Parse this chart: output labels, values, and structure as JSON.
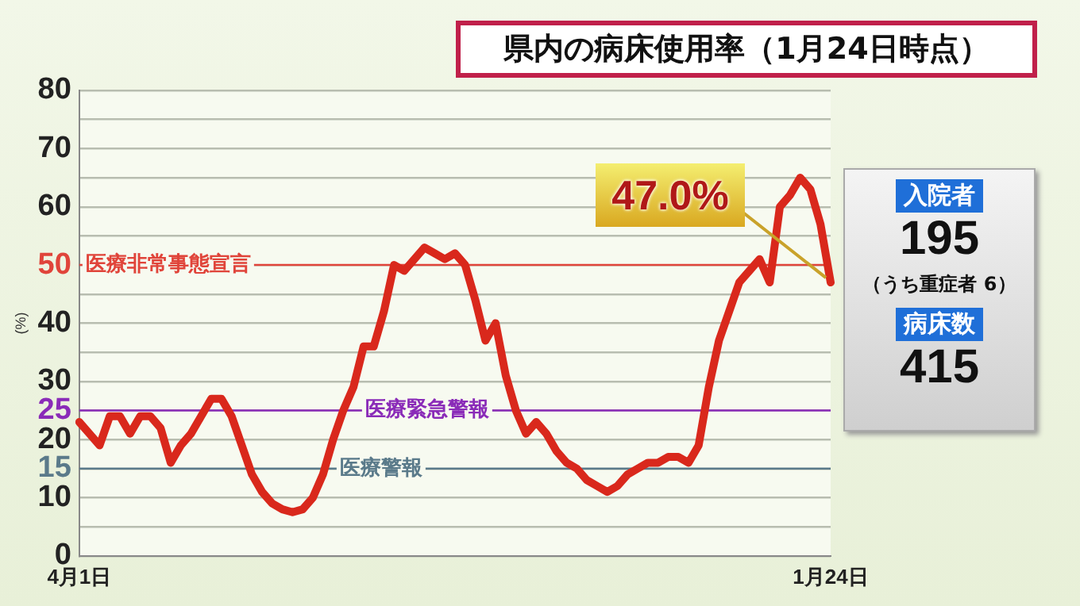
{
  "chart_data": {
    "type": "line",
    "title": "県内の病床使用率（1月24日時点）",
    "ylabel": "(%)",
    "categories": [
      "4月1日",
      null,
      null,
      null,
      null,
      null,
      null,
      null,
      null,
      null,
      null,
      null,
      null,
      null,
      null,
      null,
      null,
      null,
      null,
      null,
      null,
      null,
      null,
      null,
      null,
      null,
      null,
      null,
      null,
      null,
      null,
      null,
      null,
      null,
      null,
      null,
      null,
      null,
      null,
      null,
      null,
      null,
      null,
      null,
      null,
      null,
      null,
      null,
      null,
      null,
      null,
      null,
      null,
      null,
      null,
      null,
      null,
      null,
      null,
      null,
      null,
      null,
      null,
      null,
      null,
      null,
      null,
      null,
      null,
      null,
      null,
      null,
      null,
      null,
      "1月24日"
    ],
    "series": [
      {
        "color": "#d9281c",
        "values": [
          23,
          21,
          19,
          24,
          24,
          21,
          24,
          24,
          22,
          16,
          19,
          21,
          24,
          27,
          27,
          24,
          19,
          14,
          11,
          9,
          8,
          7.5,
          8,
          10,
          14,
          20,
          25,
          29,
          36,
          36,
          42,
          50,
          49,
          51,
          53,
          52,
          51,
          52,
          50,
          44,
          37,
          40,
          31,
          25,
          21,
          23,
          21,
          18,
          16,
          15,
          13,
          12,
          11,
          12,
          14,
          15,
          16,
          16,
          17,
          17,
          16,
          19,
          29,
          37,
          42,
          47,
          49,
          51,
          47,
          60,
          62,
          65,
          63,
          57,
          47
        ]
      }
    ],
    "ylim": [
      0,
      80
    ],
    "yticks": [
      0,
      {
        "value": 5,
        "label": null
      },
      10,
      15,
      20,
      25,
      30,
      {
        "value": 35,
        "label": null
      },
      40,
      {
        "value": 45,
        "label": null
      },
      50,
      {
        "value": 55,
        "label": null
      },
      60,
      {
        "value": 65,
        "label": null
      },
      70,
      {
        "value": 75,
        "label": null
      },
      80
    ],
    "grid": "y",
    "legend": false,
    "marker": "none",
    "line_style": "solid",
    "ref_lines": [
      {
        "axis": "y",
        "value": 50,
        "label": "医療非常事態宣言",
        "color": "#e0443a"
      },
      {
        "axis": "y",
        "value": 25,
        "label": "医療緊急警報",
        "color": "#8a2bb8"
      },
      {
        "axis": "y",
        "value": 15,
        "label": "医療警報",
        "color": "#5a7a8a"
      }
    ],
    "annotations": [
      {
        "text": "47.0%",
        "x": "1月24日",
        "y": 47
      },
      "入院者",
      "195",
      "（うち重症者 6）",
      "病床数",
      "415"
    ]
  }
}
